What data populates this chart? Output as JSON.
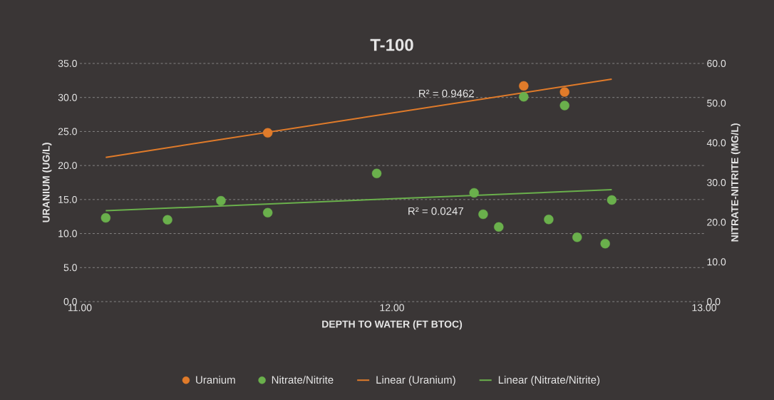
{
  "chart_data": {
    "type": "scatter",
    "title": "T-100",
    "xlabel": "DEPTH TO WATER (FT BTOC)",
    "ylabel": "URANIUM (UG/L)",
    "y2label": "NITRATE-NITRITE (MG/L)",
    "xlim": [
      11,
      13
    ],
    "xticks": [
      {
        "value": 11,
        "label": "11.00"
      },
      {
        "value": 12,
        "label": "12.00"
      },
      {
        "value": 13,
        "label": "13.00"
      }
    ],
    "ylim": [
      0,
      35
    ],
    "yticks": [
      {
        "value": 0,
        "label": "0.0"
      },
      {
        "value": 5,
        "label": "5.0"
      },
      {
        "value": 10,
        "label": "10.0"
      },
      {
        "value": 15,
        "label": "15.0"
      },
      {
        "value": 20,
        "label": "20.0"
      },
      {
        "value": 25,
        "label": "25.0"
      },
      {
        "value": 30,
        "label": "30.0"
      },
      {
        "value": 35,
        "label": "35.0"
      }
    ],
    "y2lim": [
      0,
      60
    ],
    "y2ticks": [
      {
        "value": 0,
        "label": "0.0"
      },
      {
        "value": 10,
        "label": "10.0"
      },
      {
        "value": 20,
        "label": "20.0"
      },
      {
        "value": 30,
        "label": "30.0"
      },
      {
        "value": 40,
        "label": "40.0"
      },
      {
        "value": 50,
        "label": "50.0"
      },
      {
        "value": 60,
        "label": "60.0"
      }
    ],
    "grid": "y",
    "legend": "bottom",
    "series": [
      {
        "name": "Uranium",
        "marker": "circle",
        "color": "#e07b2a",
        "x": [
          11.602,
          12.422,
          12.553
        ],
        "values": [
          24.8,
          31.7,
          30.8
        ]
      },
      {
        "name": "Nitrate/Nitrite",
        "marker": "circle",
        "color": "#6ab04c",
        "axis": "y2",
        "x": [
          11.083,
          11.281,
          11.452,
          11.602,
          11.951,
          12.263,
          12.292,
          12.342,
          12.422,
          12.502,
          12.553,
          12.593,
          12.683,
          12.704
        ],
        "values": [
          21.1,
          20.6,
          25.4,
          22.4,
          32.3,
          27.4,
          22.0,
          18.8,
          51.6,
          20.7,
          49.4,
          16.2,
          14.6,
          25.6
        ]
      },
      {
        "name": "Linear (Uranium)",
        "type": "line",
        "marker": "none",
        "color": "#e07b2a",
        "x": [
          11.083,
          12.704
        ],
        "values": [
          21.2,
          32.7
        ]
      },
      {
        "name": "Linear (Nitrate/Nitrite)",
        "type": "line",
        "marker": "none",
        "color": "#6ab04c",
        "axis": "y2",
        "x": [
          11.083,
          12.704
        ],
        "values": [
          22.9,
          28.2
        ]
      }
    ],
    "annotations": [
      "R² = 0.9462",
      "R² = 0.0247"
    ]
  }
}
